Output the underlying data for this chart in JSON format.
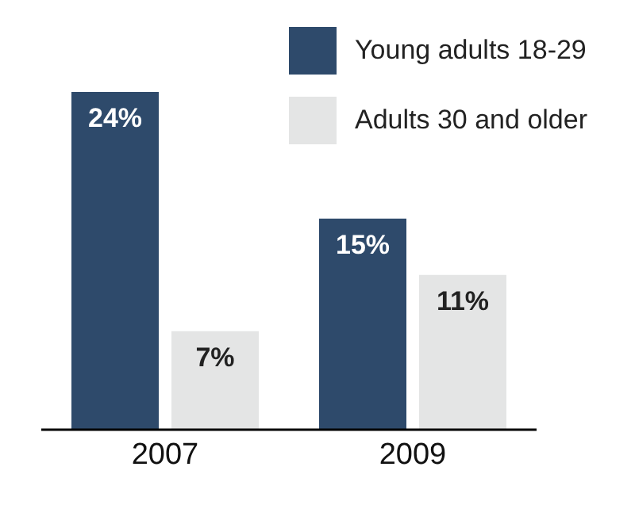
{
  "chart_data": {
    "type": "bar",
    "categories": [
      "2007",
      "2009"
    ],
    "series": [
      {
        "name": "Young adults 18-29",
        "color": "#2e4a6b",
        "values": [
          24,
          15
        ],
        "value_labels": [
          "24%",
          "15%"
        ]
      },
      {
        "name": "Adults 30 and older",
        "color": "#e4e5e5",
        "values": [
          7,
          11
        ],
        "value_labels": [
          "7%",
          "11%"
        ]
      }
    ],
    "legend": "top right"
  }
}
